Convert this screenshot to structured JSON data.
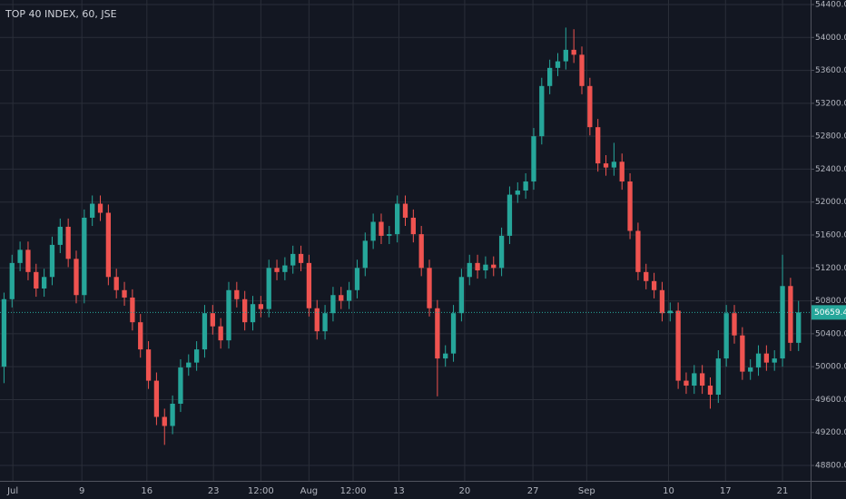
{
  "chart_data": {
    "type": "candlestick",
    "title": "TOP 40 INDEX, 60, JSE",
    "up_color": "#26a69a",
    "down_color": "#ef5350",
    "grid": true,
    "xlim": [
      -0.5,
      100.5
    ],
    "xticks": [
      {
        "value": 1.1,
        "label": "Jul"
      },
      {
        "value": 9.7,
        "label": "9"
      },
      {
        "value": 17.8,
        "label": "16"
      },
      {
        "value": 26.1,
        "label": "23"
      },
      {
        "value": 32,
        "label": "12:00"
      },
      {
        "value": 38,
        "label": "Aug"
      },
      {
        "value": 43.5,
        "label": "12:00"
      },
      {
        "value": 49.2,
        "label": "13"
      },
      {
        "value": 57.4,
        "label": "20"
      },
      {
        "value": 65.9,
        "label": "27"
      },
      {
        "value": 72.6,
        "label": "Sep"
      },
      {
        "value": 82.8,
        "label": "10"
      },
      {
        "value": 89.9,
        "label": "17"
      },
      {
        "value": 97,
        "label": "21"
      }
    ],
    "ylim": [
      48613,
      54455
    ],
    "yticks": [
      {
        "value": 48800,
        "label": "48800.00"
      },
      {
        "value": 49200,
        "label": "49200.00"
      },
      {
        "value": 49600,
        "label": "49600.00"
      },
      {
        "value": 50000,
        "label": "50000.00"
      },
      {
        "value": 50400,
        "label": "50400.00"
      },
      {
        "value": 50800,
        "label": "50800.00"
      },
      {
        "value": 51200,
        "label": "51200.00"
      },
      {
        "value": 51600,
        "label": "51600.00"
      },
      {
        "value": 52000,
        "label": "52000.00"
      },
      {
        "value": 52400,
        "label": "52400.00"
      },
      {
        "value": 52800,
        "label": "52800.00"
      },
      {
        "value": 53200,
        "label": "53200.00"
      },
      {
        "value": 53600,
        "label": "53600.00"
      },
      {
        "value": 54000,
        "label": "54000.00"
      },
      {
        "value": 54400,
        "label": "54400.00"
      }
    ],
    "open": [
      50000,
      50820,
      51260,
      51420,
      51150,
      50950,
      51090,
      51480,
      51700,
      51310,
      50870,
      51810,
      51980,
      51870,
      51090,
      50930,
      50840,
      50540,
      50210,
      49830,
      49390,
      49280,
      49550,
      49990,
      50050,
      50210,
      50650,
      50490,
      50320,
      50930,
      50820,
      50540,
      50760,
      50700,
      51200,
      51150,
      51230,
      51370,
      51260,
      50710,
      50430,
      50650,
      50870,
      50800,
      50930,
      51200,
      51530,
      51760,
      51590,
      51610,
      51980,
      51810,
      51610,
      51200,
      50710,
      50100,
      50160,
      50650,
      51090,
      51260,
      51170,
      51240,
      51200,
      51590,
      52090,
      52140,
      52250,
      52800,
      53410,
      53630,
      53710,
      53850,
      53790,
      53410,
      52910,
      52470,
      52420,
      52490,
      52250,
      51650,
      51150,
      51040,
      50930,
      50650,
      50680,
      49830,
      49770,
      49920,
      49770,
      49660,
      50100,
      50650,
      50380,
      49940,
      49990,
      50160,
      50050,
      50100,
      50980,
      50290
    ],
    "high": [
      50900,
      51360,
      51520,
      51520,
      51250,
      51190,
      51580,
      51800,
      51800,
      51410,
      51910,
      52080,
      52080,
      51970,
      51190,
      51030,
      50940,
      50640,
      50310,
      49930,
      49490,
      49650,
      50090,
      50150,
      50310,
      50750,
      50750,
      50590,
      51030,
      51030,
      50920,
      50860,
      50860,
      51300,
      51300,
      51330,
      51470,
      51470,
      51360,
      50810,
      50750,
      50970,
      50970,
      51030,
      51300,
      51630,
      51860,
      51860,
      51710,
      52080,
      52080,
      51910,
      51710,
      51300,
      50810,
      50260,
      50750,
      51190,
      51360,
      51360,
      51340,
      51340,
      51690,
      52190,
      52240,
      52350,
      52900,
      53510,
      53730,
      53810,
      54120,
      54100,
      53890,
      53510,
      53010,
      52570,
      52720,
      52590,
      52350,
      51750,
      51250,
      51140,
      51030,
      50780,
      50780,
      49930,
      50020,
      50020,
      49870,
      50200,
      50750,
      50750,
      50480,
      50090,
      50260,
      50260,
      50200,
      51360,
      51080,
      50800
    ],
    "low": [
      49800,
      50720,
      51160,
      51050,
      50850,
      50850,
      50990,
      51380,
      51210,
      50770,
      50770,
      51710,
      51770,
      50990,
      50830,
      50740,
      50440,
      50110,
      49730,
      49290,
      49050,
      49180,
      49450,
      49890,
      49950,
      50110,
      50390,
      50220,
      50220,
      50720,
      50440,
      50440,
      50600,
      50600,
      51050,
      51050,
      51130,
      51160,
      50610,
      50330,
      50330,
      50550,
      50700,
      50700,
      50830,
      51100,
      51430,
      51490,
      51490,
      51510,
      51710,
      51510,
      51100,
      50610,
      49640,
      50000,
      50060,
      50550,
      50990,
      51070,
      51070,
      51100,
      51100,
      51490,
      51990,
      52040,
      52150,
      52700,
      53310,
      53530,
      53610,
      53690,
      53310,
      52810,
      52370,
      52320,
      52320,
      52150,
      51550,
      51050,
      50940,
      50830,
      50550,
      50550,
      49730,
      49670,
      49670,
      49670,
      49490,
      49560,
      50000,
      50280,
      49840,
      49840,
      49890,
      49950,
      49950,
      50000,
      50190,
      50190
    ],
    "close": [
      50820,
      51260,
      51420,
      51150,
      50950,
      51090,
      51480,
      51700,
      51310,
      50870,
      51810,
      51980,
      51870,
      51090,
      50930,
      50840,
      50540,
      50210,
      49830,
      49390,
      49280,
      49550,
      49990,
      50050,
      50210,
      50650,
      50490,
      50320,
      50930,
      50820,
      50540,
      50760,
      50700,
      51200,
      51150,
      51230,
      51370,
      51260,
      50710,
      50430,
      50650,
      50870,
      50800,
      50930,
      51200,
      51530,
      51760,
      51590,
      51610,
      51980,
      51810,
      51610,
      51200,
      50710,
      50100,
      50160,
      50650,
      51090,
      51260,
      51170,
      51240,
      51200,
      51590,
      52090,
      52140,
      52250,
      52800,
      53410,
      53630,
      53710,
      53850,
      53790,
      53410,
      52910,
      52470,
      52420,
      52490,
      52250,
      51650,
      51150,
      51040,
      50930,
      50650,
      50680,
      49830,
      49770,
      49920,
      49770,
      49660,
      50100,
      50650,
      50380,
      49940,
      49990,
      50160,
      50050,
      50100,
      50980,
      50290,
      50659.46
    ]
  }
}
